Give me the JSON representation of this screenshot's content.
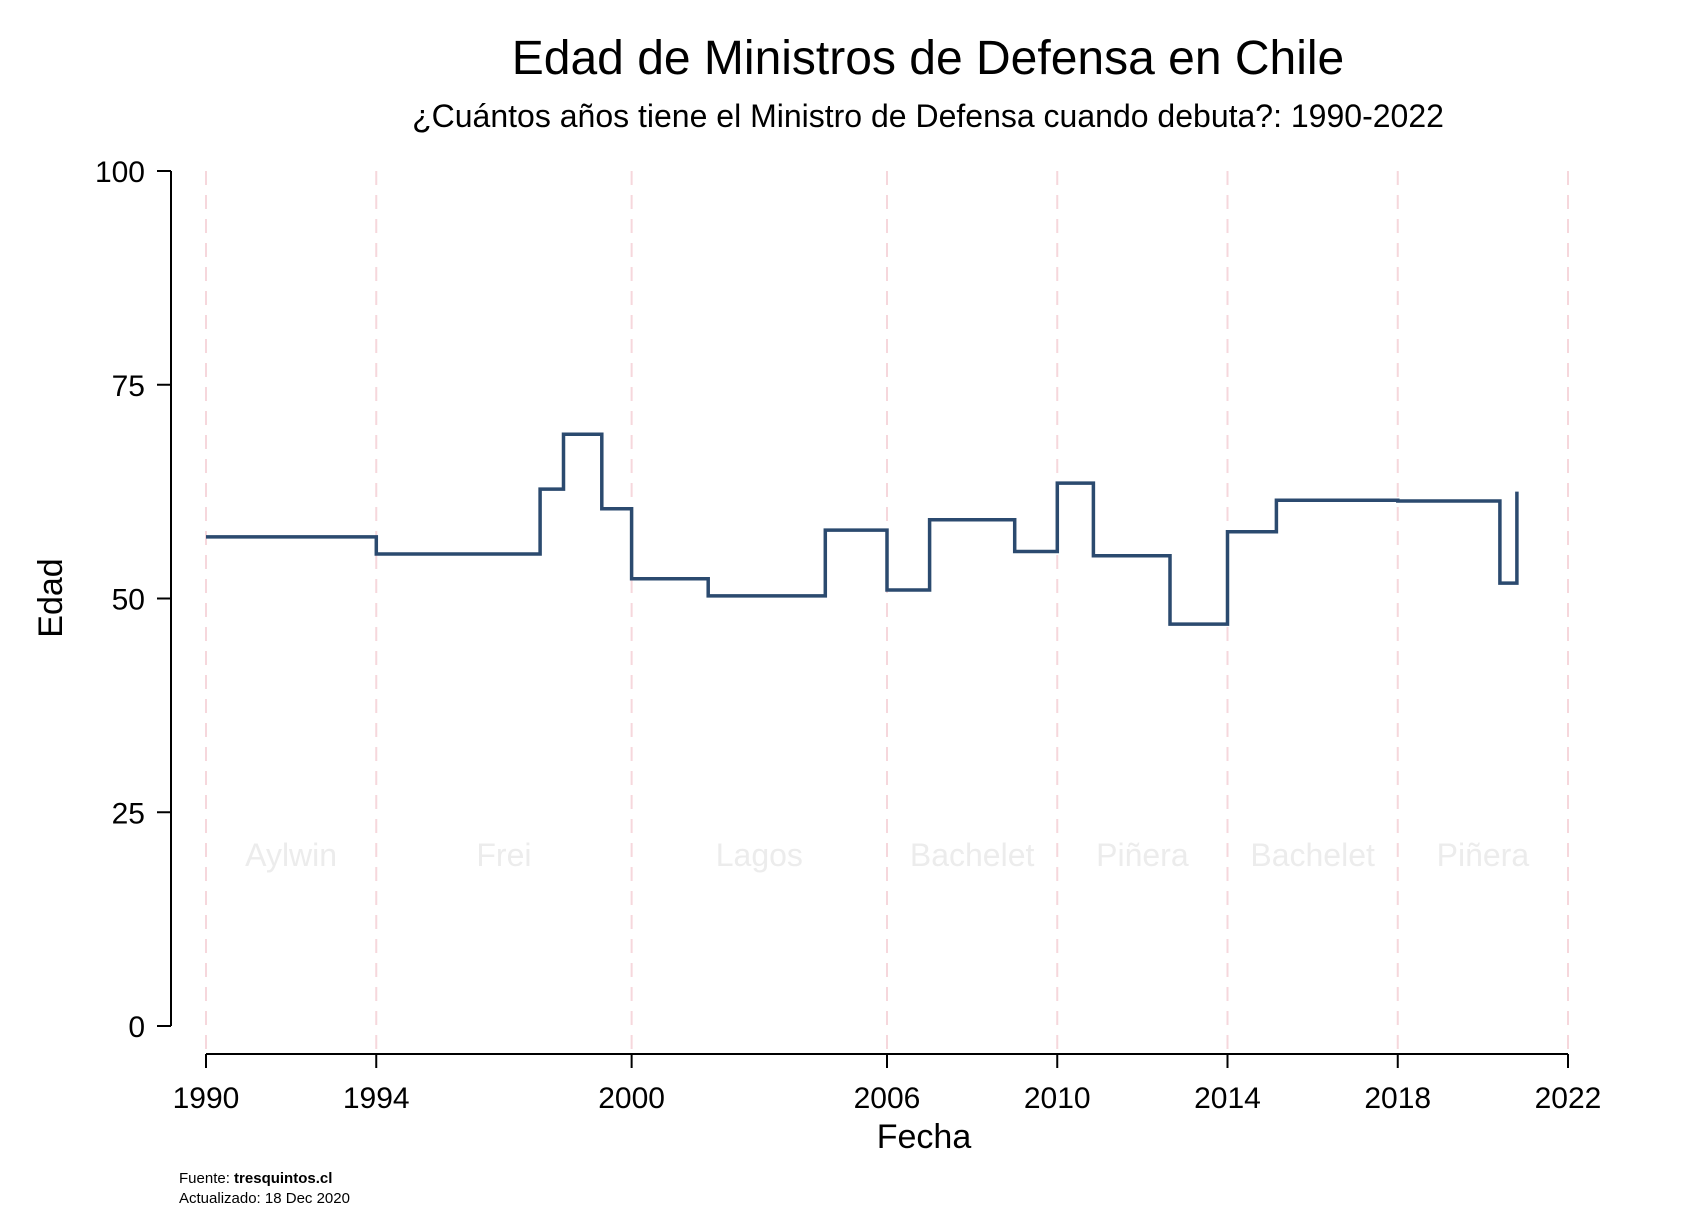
{
  "chart_data": {
    "type": "line",
    "step": true,
    "title": "Edad de Ministros de Defensa en Chile",
    "subtitle": "¿Cuántos años tiene el Ministro de Defensa cuando debuta?: 1990-2022",
    "xlabel": "Fecha",
    "ylabel": "Edad",
    "xlim": [
      1990,
      2022
    ],
    "ylim": [
      0,
      100
    ],
    "x_ticks": [
      1990,
      1994,
      2000,
      2006,
      2010,
      2014,
      2018,
      2022
    ],
    "y_ticks": [
      0,
      25,
      50,
      75,
      100
    ],
    "vertical_reference_lines": [
      1990,
      1994,
      2000,
      2006,
      2010,
      2014,
      2018,
      2022
    ],
    "period_labels": [
      {
        "label": "Aylwin",
        "x": 1992.0
      },
      {
        "label": "Frei",
        "x": 1997.0
      },
      {
        "label": "Lagos",
        "x": 2003.0
      },
      {
        "label": "Bachelet",
        "x": 2008.0
      },
      {
        "label": "Piñera",
        "x": 2012.0
      },
      {
        "label": "Bachelet",
        "x": 2016.0
      },
      {
        "label": "Piñera",
        "x": 2020.0
      }
    ],
    "period_label_y": 20,
    "line_color": "#2b4a6f",
    "reference_line_color": "#f6d7dc",
    "series": [
      {
        "points": [
          [
            1990.0,
            57.2
          ],
          [
            1994.0,
            57.2
          ],
          [
            1994.0,
            55.2
          ],
          [
            1997.85,
            55.2
          ],
          [
            1997.85,
            62.8
          ],
          [
            1998.4,
            62.8
          ],
          [
            1998.4,
            69.2
          ],
          [
            1999.3,
            69.2
          ],
          [
            1999.3,
            60.5
          ],
          [
            2000.0,
            60.5
          ],
          [
            2000.0,
            52.3
          ],
          [
            2001.8,
            52.3
          ],
          [
            2001.8,
            50.3
          ],
          [
            2004.55,
            50.3
          ],
          [
            2004.55,
            58.0
          ],
          [
            2006.0,
            58.0
          ],
          [
            2006.0,
            51.0
          ],
          [
            2007.0,
            51.0
          ],
          [
            2007.0,
            59.2
          ],
          [
            2009.0,
            59.2
          ],
          [
            2009.0,
            55.5
          ],
          [
            2010.0,
            55.5
          ],
          [
            2010.0,
            63.5
          ],
          [
            2010.85,
            63.5
          ],
          [
            2010.85,
            55.0
          ],
          [
            2012.65,
            55.0
          ],
          [
            2012.65,
            47.0
          ],
          [
            2014.0,
            47.0
          ],
          [
            2014.0,
            57.8
          ],
          [
            2015.15,
            57.8
          ],
          [
            2015.15,
            61.5
          ],
          [
            2018.0,
            61.5
          ],
          [
            2018.0,
            61.4
          ],
          [
            2020.4,
            61.4
          ],
          [
            2020.4,
            51.8
          ],
          [
            2020.8,
            51.8
          ],
          [
            2020.8,
            62.5
          ]
        ]
      }
    ]
  },
  "source": {
    "prefix": "Fuente: ",
    "site": "tresquintos.cl",
    "updated": "Actualizado: 18 Dec 2020"
  }
}
